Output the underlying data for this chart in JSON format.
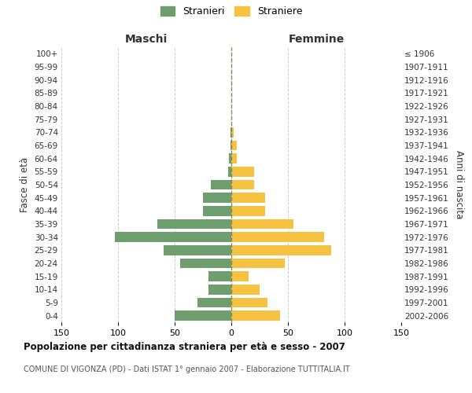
{
  "age_groups": [
    "100+",
    "95-99",
    "90-94",
    "85-89",
    "80-84",
    "75-79",
    "70-74",
    "65-69",
    "60-64",
    "55-59",
    "50-54",
    "45-49",
    "40-44",
    "35-39",
    "30-34",
    "25-29",
    "20-24",
    "15-19",
    "10-14",
    "5-9",
    "0-4"
  ],
  "birth_years": [
    "≤ 1906",
    "1907-1911",
    "1912-1916",
    "1917-1921",
    "1922-1926",
    "1927-1931",
    "1932-1936",
    "1937-1941",
    "1942-1946",
    "1947-1951",
    "1952-1956",
    "1957-1961",
    "1962-1966",
    "1967-1971",
    "1972-1976",
    "1977-1981",
    "1982-1986",
    "1987-1991",
    "1992-1996",
    "1997-2001",
    "2002-2006"
  ],
  "maschi": [
    0,
    0,
    0,
    0,
    0,
    0,
    1,
    1,
    2,
    3,
    18,
    25,
    25,
    65,
    103,
    60,
    45,
    20,
    20,
    30,
    50
  ],
  "femmine": [
    0,
    0,
    0,
    0,
    0,
    0,
    2,
    5,
    5,
    20,
    20,
    30,
    30,
    55,
    82,
    88,
    47,
    15,
    25,
    32,
    43
  ],
  "color_maschi": "#6e9e6e",
  "color_femmine": "#f5c242",
  "label_maschi": "Stranieri",
  "label_femmine": "Straniere",
  "xlabel_left": "Maschi",
  "xlabel_right": "Femmine",
  "ylabel_left": "Fasce di età",
  "ylabel_right": "Anni di nascita",
  "xlim": 150,
  "title": "Popolazione per cittadinanza straniera per età e sesso - 2007",
  "subtitle": "COMUNE DI VIGONZA (PD) - Dati ISTAT 1° gennaio 2007 - Elaborazione TUTTITALIA.IT",
  "bg_color": "#ffffff",
  "grid_color": "#cccccc",
  "dashed_line_color": "#888855"
}
